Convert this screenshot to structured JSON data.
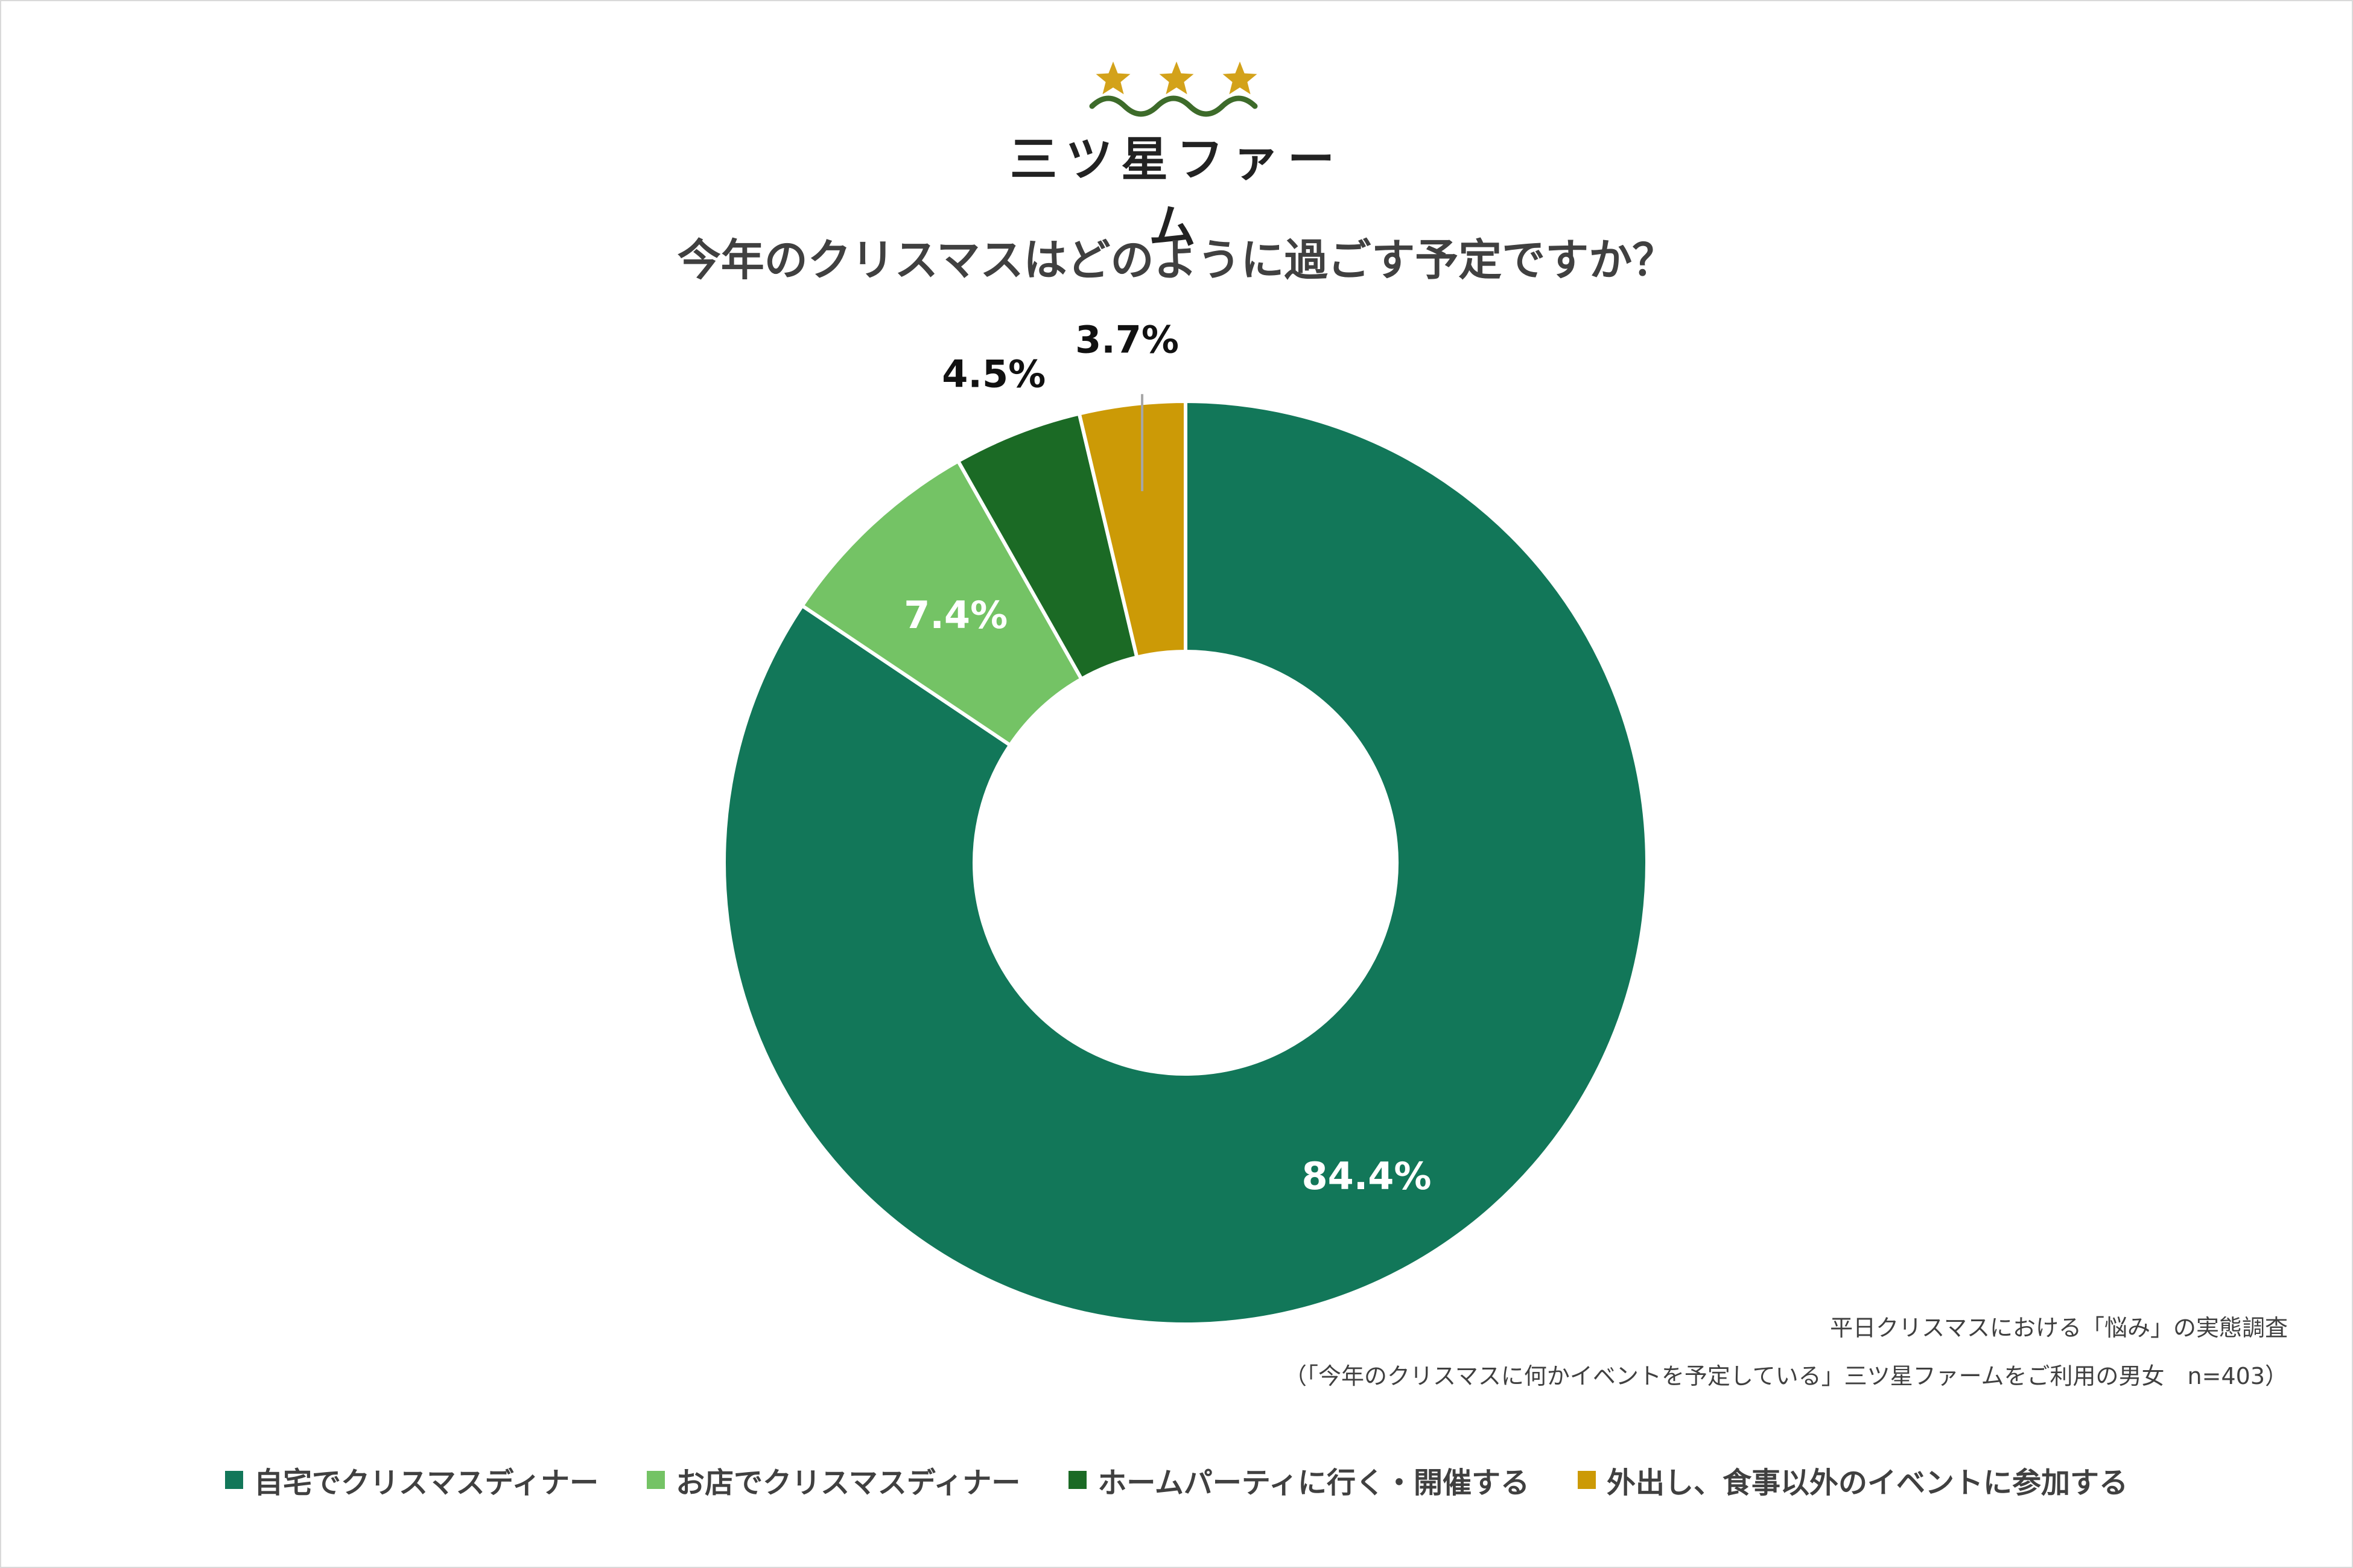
{
  "brand": {
    "name": "三ツ星ファーム",
    "star_color": "#d3a21a",
    "wave_color": "#3d6b2a"
  },
  "chart_data": {
    "type": "pie",
    "title": "今年のクリスマスはどのように過ごす予定ですか？",
    "donut": true,
    "start_angle_deg": 0,
    "direction": "clockwise",
    "slices": [
      {
        "label": "自宅でクリスマスディナー",
        "value": 84.4,
        "display": "84.4%",
        "color": "#127759",
        "label_color": "#ffffff",
        "label_position": "inside"
      },
      {
        "label": "お店でクリスマスディナー",
        "value": 7.4,
        "display": "7.4%",
        "color": "#74c365",
        "label_color": "#ffffff",
        "label_position": "inside"
      },
      {
        "label": "ホームパーティに行く・開催する",
        "value": 4.5,
        "display": "4.5%",
        "color": "#1b6a25",
        "label_color": "#111111",
        "label_position": "outside"
      },
      {
        "label": "外出し、食事以外のイベントに参加する",
        "value": 3.7,
        "display": "3.7%",
        "color": "#cc9a06",
        "label_color": "#111111",
        "label_position": "outside-leader"
      }
    ],
    "legend_position": "bottom"
  },
  "source": {
    "line1": "平日クリスマスにおける「悩み」の実態調査",
    "line2": "（「今年のクリスマスに何かイベントを予定している」三ツ星ファームをご利用の男女　n=403）"
  }
}
